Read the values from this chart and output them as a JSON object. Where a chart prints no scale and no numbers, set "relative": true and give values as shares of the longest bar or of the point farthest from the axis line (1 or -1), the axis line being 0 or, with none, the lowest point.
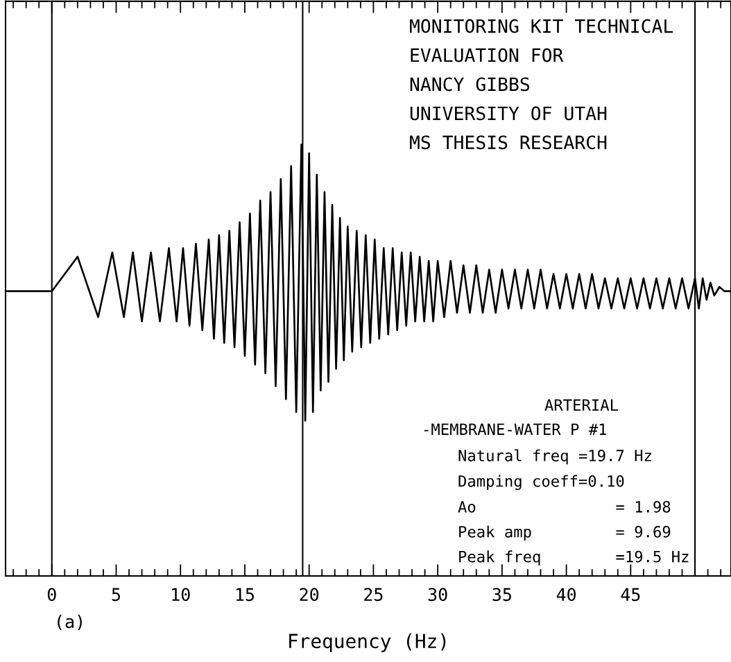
{
  "chart_data": {
    "type": "line",
    "relative": true,
    "xlabel": "Frequency (Hz)",
    "tick_labels": "x",
    "xlim": [
      -3.6,
      52.8
    ],
    "xticks": [
      0,
      5,
      10,
      15,
      20,
      25,
      30,
      35,
      40,
      45
    ],
    "series": [
      {
        "color": "#000000",
        "x": [
          -3.6,
          0,
          2.0,
          3.6,
          4.7,
          5.6,
          6.3,
          7.0,
          7.7,
          8.4,
          9.1,
          9.7,
          10.2,
          10.7,
          11.2,
          11.7,
          12.2,
          12.6,
          13.0,
          13.4,
          13.8,
          14.2,
          14.6,
          15.0,
          15.4,
          15.8,
          16.2,
          16.6,
          17.0,
          17.4,
          17.8,
          18.2,
          18.6,
          19.0,
          19.4,
          19.7,
          20.0,
          20.3,
          20.6,
          20.9,
          21.2,
          21.5,
          21.8,
          22.1,
          22.4,
          22.7,
          23.0,
          23.35,
          23.7,
          24.05,
          24.4,
          24.75,
          25.1,
          25.45,
          25.8,
          26.15,
          26.5,
          26.85,
          27.2,
          27.55,
          27.9,
          28.25,
          28.6,
          28.95,
          29.3,
          29.65,
          30.0,
          30.5,
          31.0,
          31.5,
          32.0,
          32.5,
          33.0,
          33.5,
          34.0,
          34.5,
          35.0,
          35.5,
          36.0,
          36.5,
          37.0,
          37.5,
          38.0,
          38.5,
          39.0,
          39.5,
          40.0,
          40.5,
          41.0,
          41.5,
          42.0,
          42.5,
          43.0,
          43.5,
          44.0,
          44.5,
          45.0,
          45.5,
          46.0,
          46.5,
          47.0,
          47.5,
          48.0,
          48.5,
          49.0,
          49.5,
          50.0,
          50.3,
          50.6,
          50.9,
          51.2,
          51.5,
          51.9,
          52.3,
          52.8
        ],
        "values": [
          0.66,
          0.66,
          0.74,
          0.6,
          0.75,
          0.6,
          0.75,
          0.59,
          0.75,
          0.59,
          0.76,
          0.59,
          0.76,
          0.58,
          0.77,
          0.57,
          0.78,
          0.55,
          0.79,
          0.54,
          0.8,
          0.53,
          0.82,
          0.51,
          0.84,
          0.49,
          0.87,
          0.47,
          0.89,
          0.44,
          0.92,
          0.41,
          0.95,
          0.38,
          1.0,
          0.36,
          0.98,
          0.38,
          0.93,
          0.43,
          0.89,
          0.45,
          0.86,
          0.48,
          0.83,
          0.5,
          0.81,
          0.52,
          0.8,
          0.53,
          0.79,
          0.54,
          0.78,
          0.55,
          0.76,
          0.56,
          0.76,
          0.57,
          0.75,
          0.58,
          0.75,
          0.59,
          0.74,
          0.59,
          0.73,
          0.59,
          0.73,
          0.6,
          0.73,
          0.61,
          0.72,
          0.61,
          0.72,
          0.61,
          0.71,
          0.61,
          0.71,
          0.62,
          0.71,
          0.62,
          0.71,
          0.62,
          0.71,
          0.62,
          0.7,
          0.62,
          0.7,
          0.62,
          0.7,
          0.62,
          0.7,
          0.62,
          0.69,
          0.62,
          0.69,
          0.62,
          0.69,
          0.62,
          0.69,
          0.62,
          0.69,
          0.62,
          0.69,
          0.62,
          0.69,
          0.62,
          0.69,
          0.62,
          0.69,
          0.64,
          0.68,
          0.65,
          0.67,
          0.66,
          0.66
        ]
      }
    ],
    "ref_lines": [
      {
        "axis": "x",
        "value": 0,
        "color": "#000000"
      },
      {
        "axis": "x",
        "value": 19.5,
        "color": "#000000"
      },
      {
        "axis": "x",
        "value": 50,
        "color": "#000000"
      }
    ],
    "annotations": [
      "MONITORING KIT TECHNICAL",
      "EVALUATION FOR",
      "NANCY GIBBS",
      "UNIVERSITY OF UTAH",
      "MS THESIS RESEARCH",
      "ARTERIAL",
      "-MEMBRANE-WATER P #1",
      "Natural freq =19.7 Hz",
      "Damping coeff=0.10",
      "Ao               = 1.98",
      "Peak amp         = 9.69",
      "Peak freq        =19.5 Hz",
      "(a)"
    ]
  }
}
